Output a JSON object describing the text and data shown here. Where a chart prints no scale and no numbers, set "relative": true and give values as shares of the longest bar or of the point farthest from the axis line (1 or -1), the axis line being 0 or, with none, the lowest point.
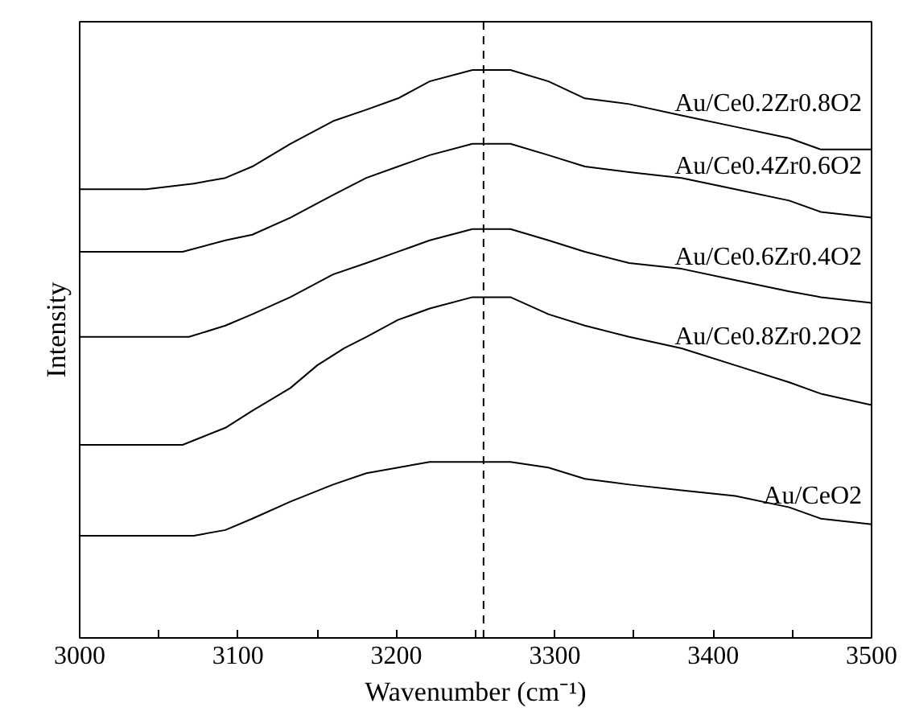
{
  "chart_data": {
    "type": "line",
    "relative": true,
    "xlabel": "Wavenumber (cm⁻¹)",
    "ylabel": "Intensity",
    "xlim": [
      3000,
      3500
    ],
    "xticks": [
      3000,
      {
        "value": 3050,
        "label": null
      },
      3100,
      {
        "value": 3150,
        "label": null
      },
      3200,
      {
        "value": 3250,
        "label": null
      },
      3300,
      {
        "value": 3350,
        "label": null
      },
      3400,
      {
        "value": 3450,
        "label": null
      },
      3500
    ],
    "tick_labels": "x",
    "grid": false,
    "legend": false,
    "marker": "none",
    "line_style": "solid",
    "ref_lines": [
      {
        "axis": "x",
        "value": 3255,
        "color": "#000000",
        "line_style": "dashed"
      }
    ],
    "series": [
      {
        "name": "Au/Ce0.2Zr0.8O2",
        "color": "#000000",
        "x": [
          3000,
          3042,
          3072,
          3092,
          3109,
          3133,
          3160,
          3181,
          3201,
          3221,
          3248,
          3255,
          3272,
          3296,
          3319,
          3347,
          3380,
          3414,
          3448,
          3468,
          3500
        ],
        "values": [
          0.79,
          0.79,
          0.8,
          0.81,
          0.83,
          0.87,
          0.91,
          0.93,
          0.95,
          0.98,
          1.0,
          1.0,
          1.0,
          0.98,
          0.95,
          0.94,
          0.92,
          0.9,
          0.88,
          0.86,
          0.86
        ]
      },
      {
        "name": "Au/Ce0.4Zr0.6O2",
        "color": "#000000",
        "x": [
          3000,
          3042,
          3065,
          3092,
          3109,
          3133,
          3160,
          3181,
          3201,
          3221,
          3248,
          3255,
          3272,
          3296,
          3319,
          3347,
          3380,
          3414,
          3448,
          3468,
          3500
        ],
        "values": [
          0.68,
          0.68,
          0.68,
          0.7,
          0.71,
          0.74,
          0.78,
          0.81,
          0.83,
          0.85,
          0.87,
          0.87,
          0.87,
          0.85,
          0.83,
          0.82,
          0.81,
          0.79,
          0.77,
          0.75,
          0.74
        ]
      },
      {
        "name": "Au/Ce0.6Zr0.4O2",
        "color": "#000000",
        "x": [
          3000,
          3042,
          3069,
          3092,
          3109,
          3133,
          3160,
          3181,
          3201,
          3221,
          3248,
          3255,
          3272,
          3296,
          3319,
          3347,
          3380,
          3414,
          3448,
          3468,
          3500
        ],
        "values": [
          0.53,
          0.53,
          0.53,
          0.55,
          0.57,
          0.6,
          0.64,
          0.66,
          0.68,
          0.7,
          0.72,
          0.72,
          0.72,
          0.7,
          0.68,
          0.66,
          0.65,
          0.63,
          0.61,
          0.6,
          0.59
        ]
      },
      {
        "name": "Au/Ce0.8Zr0.2O2",
        "color": "#000000",
        "x": [
          3000,
          3042,
          3065,
          3092,
          3109,
          3133,
          3150,
          3167,
          3181,
          3201,
          3221,
          3248,
          3255,
          3272,
          3296,
          3319,
          3347,
          3380,
          3414,
          3448,
          3468,
          3500
        ],
        "values": [
          0.34,
          0.34,
          0.34,
          0.37,
          0.4,
          0.44,
          0.48,
          0.51,
          0.53,
          0.56,
          0.58,
          0.6,
          0.6,
          0.6,
          0.57,
          0.55,
          0.53,
          0.51,
          0.48,
          0.45,
          0.43,
          0.41
        ]
      },
      {
        "name": "Au/CeO2",
        "color": "#000000",
        "x": [
          3000,
          3042,
          3072,
          3092,
          3109,
          3133,
          3160,
          3181,
          3201,
          3221,
          3248,
          3255,
          3272,
          3296,
          3319,
          3347,
          3380,
          3414,
          3448,
          3468,
          3500
        ],
        "values": [
          0.18,
          0.18,
          0.18,
          0.19,
          0.21,
          0.24,
          0.27,
          0.29,
          0.3,
          0.31,
          0.31,
          0.31,
          0.31,
          0.3,
          0.28,
          0.27,
          0.26,
          0.25,
          0.23,
          0.21,
          0.2
        ]
      }
    ]
  }
}
